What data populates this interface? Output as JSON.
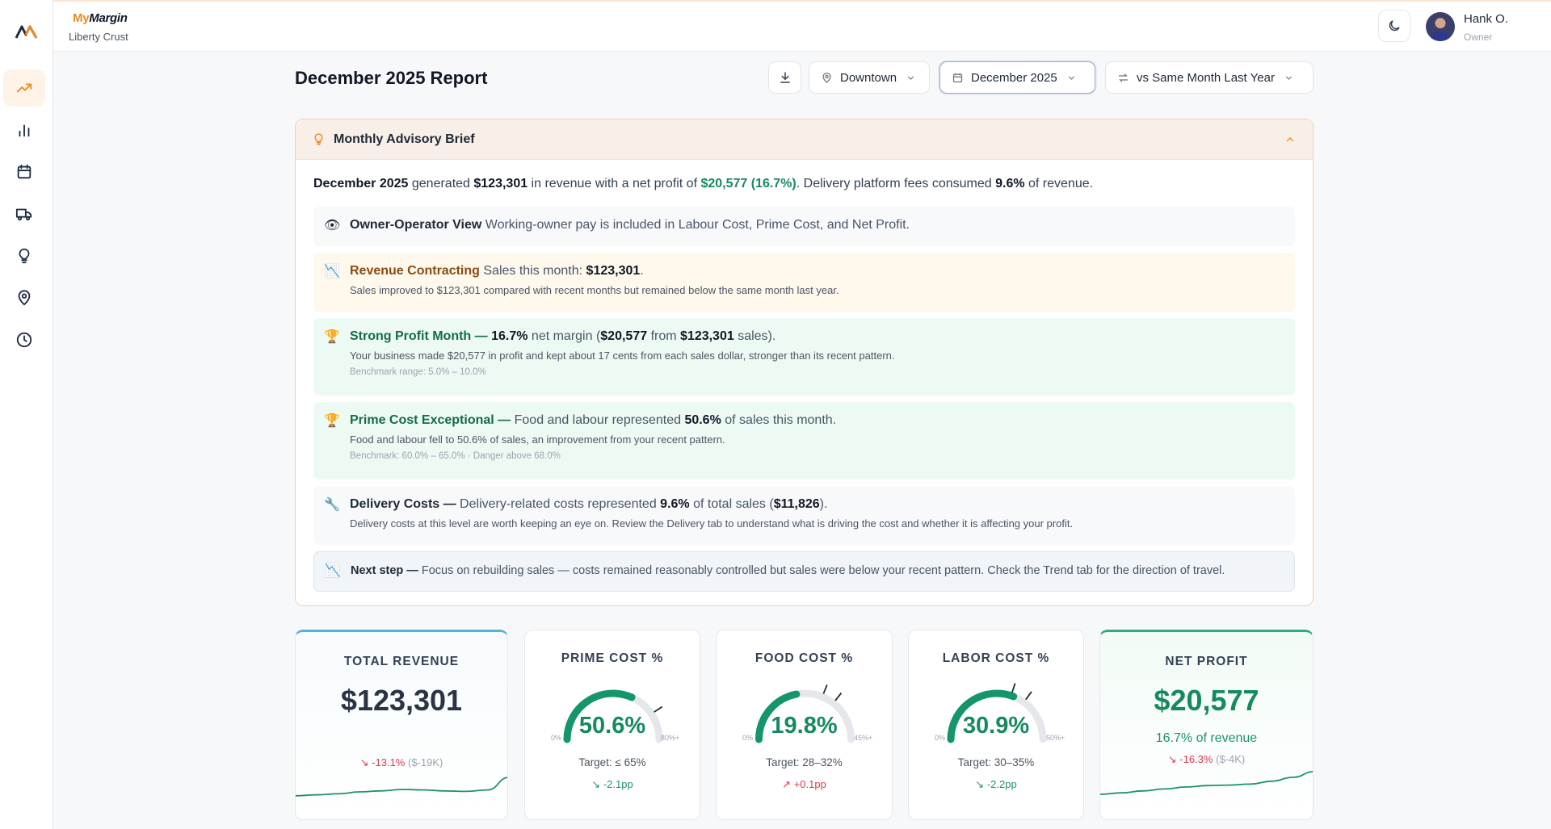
{
  "brand": {
    "name_prefix": "My",
    "name_suffix": "Margin",
    "business": "Liberty Crust"
  },
  "user": {
    "name": "Hank O.",
    "role": "Owner"
  },
  "sidebar": {
    "items": [
      {
        "icon": "trend-up-icon",
        "active": true
      },
      {
        "icon": "bar-chart-icon"
      },
      {
        "icon": "calendar-icon"
      },
      {
        "icon": "truck-icon"
      },
      {
        "icon": "lightbulb-icon"
      },
      {
        "icon": "location-pin-icon"
      },
      {
        "icon": "clock-icon"
      }
    ]
  },
  "report": {
    "title": "December 2025 Report",
    "location": "Downtown",
    "period": "December 2025",
    "comparison": "vs Same Month Last Year"
  },
  "advisory": {
    "title": "Monthly Advisory Brief",
    "summary": {
      "period": "December 2025",
      "t1": " generated ",
      "revenue": "$123,301",
      "t2": " in revenue with a net profit of ",
      "profit": "$20,577 (16.7%)",
      "t3": ". Delivery platform fees consumed ",
      "delivery_pct": "9.6%",
      "t4": " of revenue."
    },
    "rows": {
      "owner": {
        "icon": "👁",
        "title": "Owner-Operator View",
        "text": " Working-owner pay is included in Labour Cost, Prime Cost, and Net Profit."
      },
      "revenue": {
        "icon": "📉",
        "title": "Revenue Contracting",
        "text": " Sales this month: ",
        "value": "$123,301",
        "end": ".",
        "detail": "Sales improved to $123,301 compared with recent months but remained below the same month last year."
      },
      "profit": {
        "icon": "🏆",
        "title": "Strong Profit Month —",
        "margin": "16.7%",
        "t1": " net margin (",
        "profit": "$20,577",
        "t2": " from ",
        "sales": "$123,301",
        "t3": " sales).",
        "detail": "Your business made $20,577 in profit and kept about 17 cents from each sales dollar, stronger than its recent pattern.",
        "bench": "Benchmark range: 5.0% – 10.0%"
      },
      "prime": {
        "icon": "🏆",
        "title": "Prime Cost Exceptional —",
        "t1": " Food and labour represented ",
        "pct": "50.6%",
        "t2": " of sales this month.",
        "detail": "Food and labour fell to 50.6% of sales, an improvement from your recent pattern.",
        "bench": "Benchmark: 60.0% – 65.0% · Danger above 68.0%"
      },
      "delivery": {
        "icon": "🔧",
        "title": "Delivery Costs —",
        "t1": " Delivery-related costs represented ",
        "pct": "9.6%",
        "t2": " of total sales (",
        "amount": "$11,826",
        "t3": ").",
        "detail": "Delivery costs at this level are worth keeping an eye on. Review the Delivery tab to understand what is driving the cost and whether it is affecting your profit."
      },
      "next": {
        "icon": "📉",
        "title": "Next step —",
        "text": " Focus on rebuilding sales — costs remained reasonably controlled but sales were below your recent pattern. Check the Trend tab for the direction of travel."
      }
    }
  },
  "kpis": {
    "revenue": {
      "title": "TOTAL REVENUE",
      "value": "$123,301",
      "change": "-13.1%",
      "abs": "($-19K)",
      "sparkline": [
        0.12,
        0.14,
        0.16,
        0.2,
        0.22,
        0.25,
        0.24,
        0.22,
        0.21,
        0.24,
        0.5
      ]
    },
    "prime": {
      "title": "PRIME COST %",
      "value": "50.6%",
      "pct": 50.6,
      "max": 80,
      "min_label": "0%",
      "max_label": "80%+",
      "target": "Target: ≤ 65%",
      "change": "-2.1pp",
      "ticks": [
        65
      ]
    },
    "food": {
      "title": "FOOD COST %",
      "value": "19.8%",
      "pct": 19.8,
      "max": 45,
      "min_label": "0%",
      "max_label": "45%+",
      "target": "Target: 28–32%",
      "change": "+0.1pp",
      "ticks": [
        28,
        32
      ]
    },
    "labor": {
      "title": "LABOR COST %",
      "value": "30.9%",
      "pct": 30.9,
      "max": 50,
      "min_label": "0%",
      "max_label": "50%+",
      "target": "Target: 30–35%",
      "change": "-2.2pp",
      "ticks": [
        30,
        35
      ]
    },
    "net": {
      "title": "NET PROFIT",
      "value": "$20,577",
      "sub": "16.7% of revenue",
      "change": "-16.3%",
      "abs": "($-4K)",
      "sparkline": [
        0.15,
        0.18,
        0.22,
        0.26,
        0.3,
        0.33,
        0.34,
        0.36,
        0.42,
        0.5,
        0.62
      ]
    }
  },
  "colors": {
    "accent": "#f08a24",
    "green": "#168a5e",
    "red": "#dc3a4f",
    "gauge_track": "#e5e7eb"
  }
}
